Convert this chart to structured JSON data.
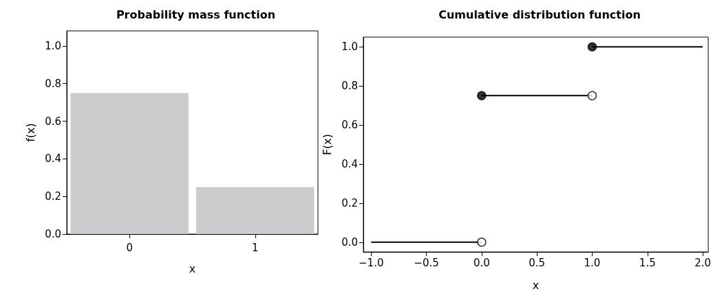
{
  "chart_data": [
    {
      "type": "bar",
      "title": "Probability mass function",
      "xlabel": "x",
      "ylabel": "f(x)",
      "categories": [
        "0",
        "1"
      ],
      "values": [
        0.75,
        0.25
      ],
      "color": "#cbcccd",
      "ylim": [
        0,
        1.08
      ],
      "yticks": [
        {
          "value": 0,
          "label": "0.0"
        },
        {
          "value": 0.2,
          "label": "0.2"
        },
        {
          "value": 0.4,
          "label": "0.4"
        },
        {
          "value": 0.6,
          "label": "0.6"
        },
        {
          "value": 0.8,
          "label": "0.8"
        },
        {
          "value": 1,
          "label": "1.0"
        }
      ],
      "grid": false
    },
    {
      "type": "line",
      "title": "Cumulative distribution function",
      "xlabel": "x",
      "ylabel": "F(x)",
      "xlim": [
        -1.07,
        2.05
      ],
      "ylim": [
        -0.05,
        1.05
      ],
      "xticks": [
        {
          "value": -1,
          "label": "−1.0"
        },
        {
          "value": -0.5,
          "label": "−0.5"
        },
        {
          "value": 0,
          "label": "0.0"
        },
        {
          "value": 0.5,
          "label": "0.5"
        },
        {
          "value": 1,
          "label": "1.0"
        },
        {
          "value": 1.5,
          "label": "1.5"
        },
        {
          "value": 2,
          "label": "2.0"
        }
      ],
      "yticks": [
        {
          "value": 0,
          "label": "0.0"
        },
        {
          "value": 0.2,
          "label": "0.2"
        },
        {
          "value": 0.4,
          "label": "0.4"
        },
        {
          "value": 0.6,
          "label": "0.6"
        },
        {
          "value": 0.8,
          "label": "0.8"
        },
        {
          "value": 1,
          "label": "1.0"
        }
      ],
      "grid": false,
      "series": [
        {
          "type": "line",
          "color": "#000000",
          "x": [
            -1,
            0
          ],
          "values": [
            0,
            0
          ],
          "marker": "none"
        },
        {
          "type": "line",
          "color": "#000000",
          "x": [
            0,
            1
          ],
          "values": [
            0.75,
            0.75
          ],
          "marker": "none"
        },
        {
          "type": "line",
          "color": "#000000",
          "x": [
            1,
            2
          ],
          "values": [
            1,
            1
          ],
          "marker": "none"
        },
        {
          "type": "scatter",
          "color": "#000000",
          "x": [
            0,
            1
          ],
          "values": [
            0.75,
            1
          ],
          "marker": "circle"
        },
        {
          "type": "scatter",
          "color": "#ffffff",
          "x": [
            0,
            1
          ],
          "values": [
            0,
            0.75
          ],
          "marker": "circle"
        }
      ]
    }
  ]
}
